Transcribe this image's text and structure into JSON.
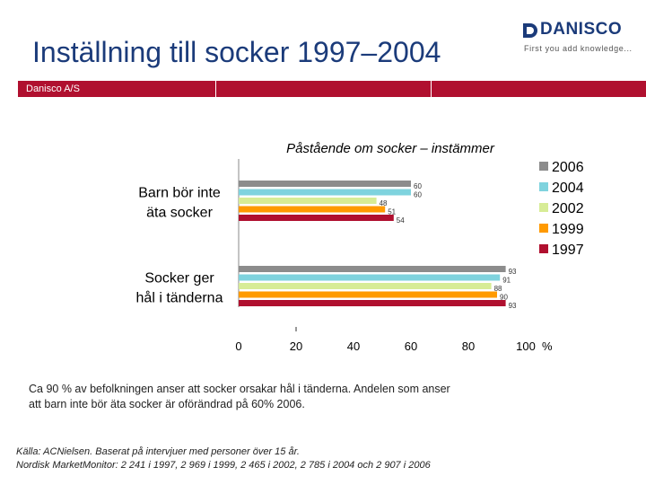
{
  "slide": {
    "title": "Inställning till socker 1997–2004",
    "company": "Danisco A/S",
    "logo_text": "DANISCO",
    "tagline": "First you add knowledge...",
    "description": "Ca 90 % av befolkningen anser att socker orsakar hål i tänderna. Andelen som anser att barn inte bör äta socker är oförändrad på 60% 2006.",
    "source_line1": "Källa: ACNielsen. Baserat på intervjuer med personer över 15 år.",
    "source_line2": "Nordisk MarketMonitor: 2 241 i 1997, 2 969 i 1999, 2 465 i 2002, 2 785 i 2004 och 2 907 i 2006"
  },
  "colors": {
    "title": "#1b3b7a",
    "band": "#b0102f"
  },
  "chart_data": {
    "type": "bar",
    "orientation": "horizontal",
    "title": "Påstående om socker – instämmer",
    "categories": [
      "Barn bör inte äta socker",
      "Socker ger hål i tänderna"
    ],
    "category_lines": [
      [
        "Barn bör inte",
        "äta socker"
      ],
      [
        "Socker ger",
        "hål i tänderna"
      ]
    ],
    "series": [
      {
        "name": "2006",
        "color": "#8c8c8c",
        "values": [
          60,
          93
        ]
      },
      {
        "name": "2004",
        "color": "#7fd3de",
        "values": [
          60,
          91
        ]
      },
      {
        "name": "2002",
        "color": "#d7ec96",
        "values": [
          48,
          88
        ]
      },
      {
        "name": "1999",
        "color": "#ff9a00",
        "values": [
          51,
          90
        ]
      },
      {
        "name": "1997",
        "color": "#b0102f",
        "values": [
          54,
          93
        ]
      }
    ],
    "xlim": [
      0,
      100
    ],
    "x_ticks": [
      0,
      20,
      40,
      60,
      80,
      100
    ],
    "x_unit": "%",
    "legend": "right",
    "grid": false
  }
}
